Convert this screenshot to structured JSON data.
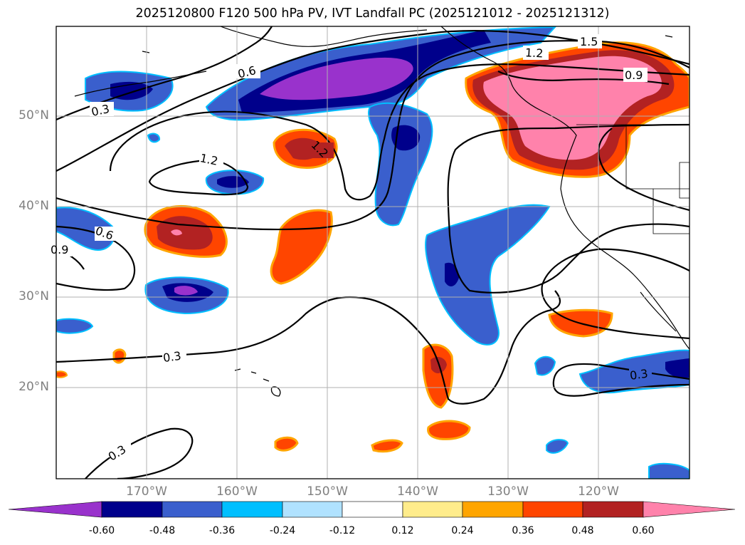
{
  "title": "2025120800 F120 500 hPa PV, IVT Landfall PC (2025121012 - 2025121312)",
  "map": {
    "lon_range": [
      -180,
      -110
    ],
    "lat_range": [
      10,
      60
    ],
    "lat_ticks": [
      {
        "value": 50,
        "label": "50°N"
      },
      {
        "value": 40,
        "label": "40°N"
      },
      {
        "value": 30,
        "label": "30°N"
      },
      {
        "value": 20,
        "label": "20°N"
      }
    ],
    "lon_ticks": [
      {
        "value": -170,
        "label": "170°W"
      },
      {
        "value": -160,
        "label": "160°W"
      },
      {
        "value": -150,
        "label": "150°W"
      },
      {
        "value": -140,
        "label": "140°W"
      },
      {
        "value": -130,
        "label": "130°W"
      },
      {
        "value": -120,
        "label": "120°W"
      }
    ],
    "contour_labels": [
      "0.3",
      "0.6",
      "0.9",
      "1.2",
      "1.5"
    ],
    "colorbar": {
      "levels": [
        "-0.60",
        "-0.48",
        "-0.36",
        "-0.24",
        "-0.12",
        "0.12",
        "0.24",
        "0.36",
        "0.48",
        "0.60"
      ],
      "colors": [
        "#9932cc",
        "#00008b",
        "#3a5fcd",
        "#00bfff",
        "#b0e2ff",
        "#ffffff",
        "#ffec8b",
        "#ffa500",
        "#ff4500",
        "#b22222",
        "#ff82ab"
      ]
    }
  }
}
